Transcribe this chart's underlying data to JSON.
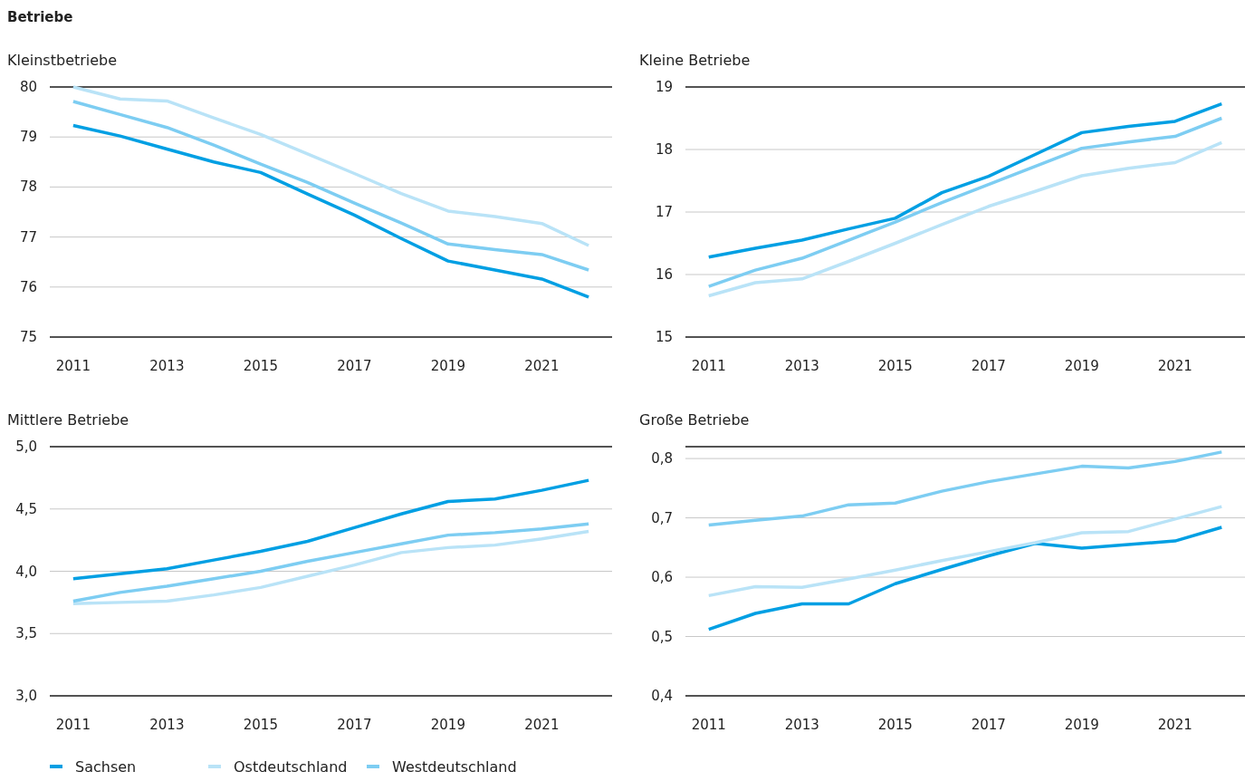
{
  "chart_data": [
    {
      "type": "line",
      "title": "Kleinstbetriebe",
      "annotations": [
        "Betriebe"
      ],
      "x": [
        2011,
        2012,
        2013,
        2014,
        2015,
        2016,
        2017,
        2018,
        2019,
        2020,
        2021,
        2022
      ],
      "xlim": [
        2010.5,
        2022.5
      ],
      "xticks": [
        2011,
        2013,
        2015,
        2017,
        2019,
        2021
      ],
      "ylim": [
        75,
        80
      ],
      "yticks": [
        75,
        76,
        77,
        78,
        79,
        80
      ],
      "grid": "y",
      "line_style": "solid",
      "marker": "none",
      "legend": "bottom",
      "series": [
        {
          "name": "Sachsen",
          "color": "#009fe3",
          "values": [
            79.23,
            79.02,
            78.76,
            78.5,
            78.29,
            77.86,
            77.44,
            76.97,
            76.52,
            76.34,
            76.16,
            75.8
          ]
        },
        {
          "name": "Ostdeutschland",
          "color": "#b9e3f7",
          "values": [
            80.0,
            79.76,
            79.72,
            79.38,
            79.05,
            78.66,
            78.27,
            77.87,
            77.52,
            77.41,
            77.27,
            76.83
          ]
        },
        {
          "name": "Westdeutschland",
          "color": "#7dcdf2",
          "values": [
            79.71,
            79.45,
            79.19,
            78.84,
            78.46,
            78.09,
            77.68,
            77.28,
            76.86,
            76.75,
            76.65,
            76.34
          ]
        }
      ]
    },
    {
      "type": "line",
      "title": "Kleine Betriebe",
      "x": [
        2011,
        2012,
        2013,
        2014,
        2015,
        2016,
        2017,
        2018,
        2019,
        2020,
        2021,
        2022
      ],
      "xlim": [
        2010.5,
        2022.5
      ],
      "xticks": [
        2011,
        2013,
        2015,
        2017,
        2019,
        2021
      ],
      "ylim": [
        15,
        19
      ],
      "yticks": [
        15,
        16,
        17,
        18,
        19
      ],
      "grid": "y",
      "line_style": "solid",
      "marker": "none",
      "series": [
        {
          "color": "#009fe3",
          "values": [
            16.28,
            16.42,
            16.55,
            16.73,
            16.9,
            17.31,
            17.57,
            17.92,
            18.27,
            18.37,
            18.45,
            18.73
          ]
        },
        {
          "color": "#b9e3f7",
          "values": [
            15.66,
            15.87,
            15.93,
            16.21,
            16.5,
            16.8,
            17.09,
            17.33,
            17.58,
            17.7,
            17.79,
            18.11
          ]
        },
        {
          "color": "#7dcdf2",
          "values": [
            15.81,
            16.07,
            16.26,
            16.55,
            16.84,
            17.15,
            17.44,
            17.73,
            18.02,
            18.12,
            18.21,
            18.5
          ]
        }
      ]
    },
    {
      "type": "line",
      "title": "Mittlere Betriebe",
      "x": [
        2011,
        2012,
        2013,
        2014,
        2015,
        2016,
        2017,
        2018,
        2019,
        2020,
        2021,
        2022
      ],
      "xlim": [
        2010.5,
        2022.5
      ],
      "xticks": [
        2011,
        2013,
        2015,
        2017,
        2019,
        2021
      ],
      "ylim": [
        3,
        5
      ],
      "yticks": [
        {
          "value": 3,
          "label": "3,0"
        },
        {
          "value": 3.5,
          "label": "3,5"
        },
        {
          "value": 4,
          "label": "4,0"
        },
        {
          "value": 4.5,
          "label": "4,5"
        },
        {
          "value": 5,
          "label": "5,0"
        }
      ],
      "grid": "y",
      "line_style": "solid",
      "marker": "none",
      "series": [
        {
          "color": "#009fe3",
          "values": [
            3.94,
            3.98,
            4.02,
            4.09,
            4.16,
            4.24,
            4.35,
            4.46,
            4.56,
            4.58,
            4.65,
            4.73
          ]
        },
        {
          "color": "#b9e3f7",
          "values": [
            3.74,
            3.75,
            3.76,
            3.81,
            3.87,
            3.96,
            4.05,
            4.15,
            4.19,
            4.21,
            4.26,
            4.32
          ]
        },
        {
          "color": "#7dcdf2",
          "values": [
            3.76,
            3.83,
            3.88,
            3.94,
            4.0,
            4.08,
            4.15,
            4.22,
            4.29,
            4.31,
            4.34,
            4.38
          ]
        }
      ]
    },
    {
      "type": "line",
      "title": "Große Betriebe",
      "x": [
        2011,
        2012,
        2013,
        2014,
        2015,
        2016,
        2017,
        2018,
        2019,
        2020,
        2021,
        2022
      ],
      "xlim": [
        2010.5,
        2022.5
      ],
      "xticks": [
        2011,
        2013,
        2015,
        2017,
        2019,
        2021
      ],
      "ylim": [
        0.4,
        0.82
      ],
      "yticks": [
        {
          "value": 0.4,
          "label": "0,4"
        },
        {
          "value": 0.5,
          "label": "0,5"
        },
        {
          "value": 0.6,
          "label": "0,6"
        },
        {
          "value": 0.7,
          "label": "0,7"
        },
        {
          "value": 0.8,
          "label": "0,8"
        }
      ],
      "grid": "y",
      "line_style": "solid",
      "marker": "none",
      "series": [
        {
          "color": "#009fe3",
          "values": [
            0.512,
            0.539,
            0.555,
            0.555,
            0.589,
            0.613,
            0.636,
            0.657,
            0.649,
            0.655,
            0.661,
            0.684
          ]
        },
        {
          "color": "#b9e3f7",
          "values": [
            0.569,
            0.584,
            0.583,
            0.597,
            0.612,
            0.628,
            0.643,
            0.658,
            0.675,
            0.677,
            0.698,
            0.719
          ]
        },
        {
          "color": "#7dcdf2",
          "values": [
            0.688,
            0.696,
            0.703,
            0.722,
            0.725,
            0.745,
            0.761,
            0.774,
            0.787,
            0.784,
            0.795,
            0.811
          ]
        }
      ]
    }
  ]
}
